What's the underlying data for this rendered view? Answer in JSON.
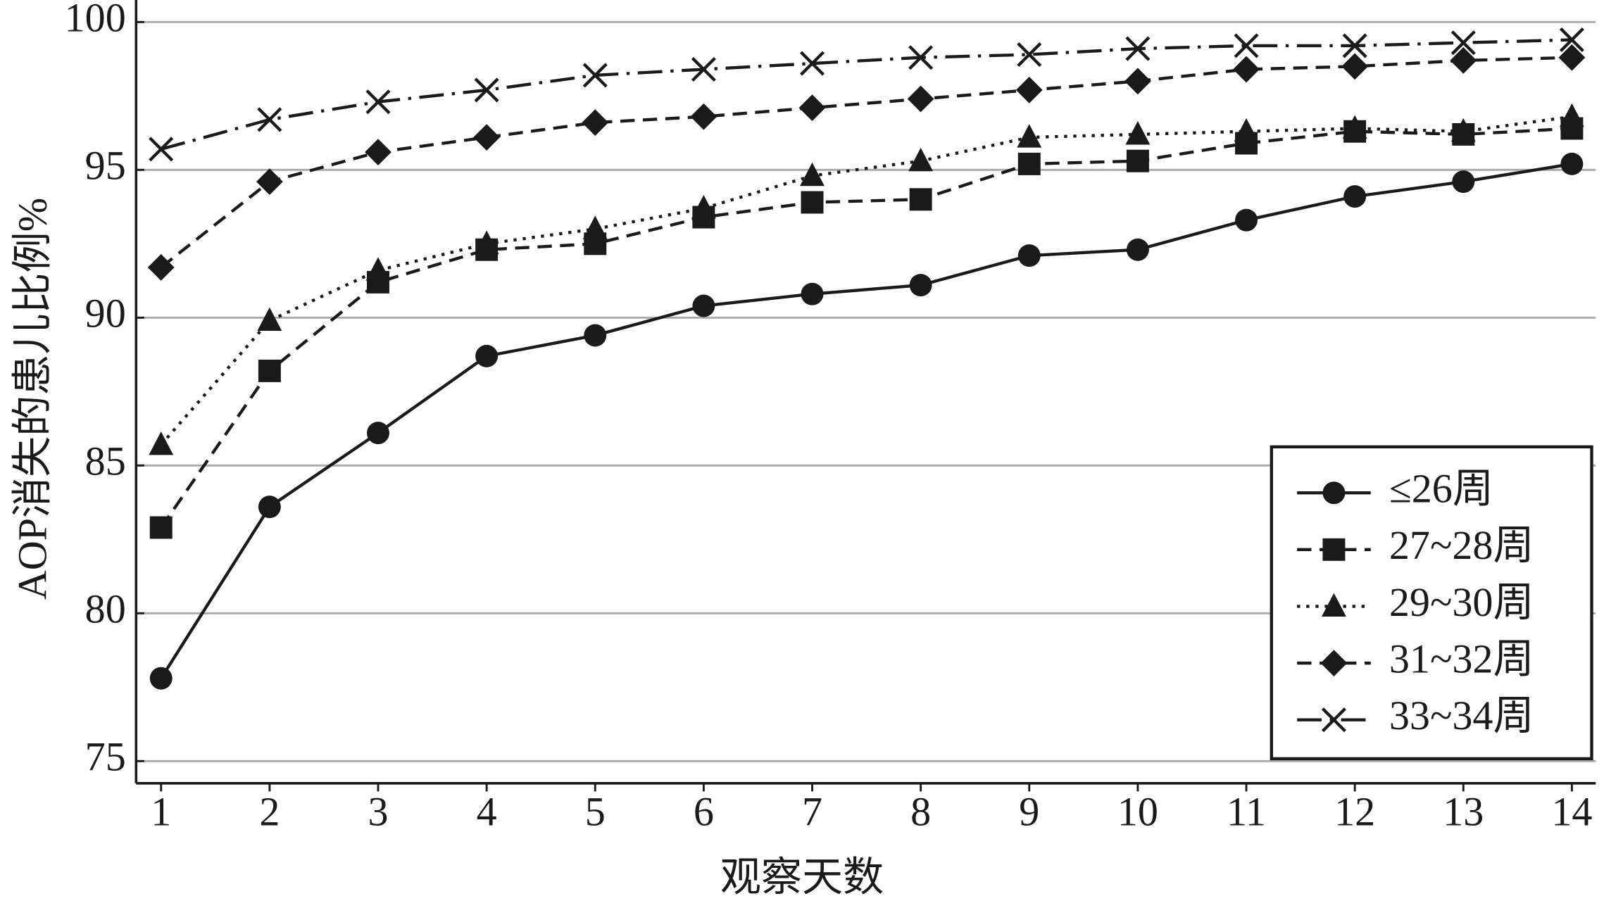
{
  "chart_data": {
    "type": "line",
    "x": [
      1,
      2,
      3,
      4,
      5,
      6,
      7,
      8,
      9,
      10,
      11,
      12,
      13,
      14
    ],
    "xlim": [
      0.77,
      14.22
    ],
    "xticks": [
      1,
      2,
      3,
      4,
      5,
      6,
      7,
      8,
      9,
      10,
      11,
      12,
      13,
      14
    ],
    "ylim": [
      74.25,
      100.4
    ],
    "yticks": [
      75,
      80,
      85,
      90,
      95,
      100
    ],
    "xlabel": "观察天数",
    "ylabel": "AOP消失的患儿比例%",
    "grid": true,
    "legend": "lower right",
    "series": [
      {
        "name": "≤26周",
        "color": "#1a1a1a",
        "marker": "circle",
        "dash": "solid",
        "values": [
          77.8,
          83.6,
          86.1,
          88.7,
          89.4,
          90.4,
          90.8,
          91.1,
          92.1,
          92.3,
          93.3,
          94.1,
          94.6,
          95.2
        ]
      },
      {
        "name": "27~28周",
        "color": "#1a1a1a",
        "marker": "square",
        "dash": "dashed",
        "values": [
          82.9,
          88.2,
          91.2,
          92.3,
          92.5,
          93.4,
          93.9,
          94.0,
          95.2,
          95.3,
          95.9,
          96.3,
          96.2,
          96.4
        ]
      },
      {
        "name": "29~30周",
        "color": "#1a1a1a",
        "marker": "triangle",
        "dash": "dotted",
        "values": [
          85.7,
          89.9,
          91.6,
          92.5,
          93.0,
          93.7,
          94.8,
          95.3,
          96.1,
          96.2,
          96.3,
          96.4,
          96.3,
          96.8
        ]
      },
      {
        "name": "31~32周",
        "color": "#1a1a1a",
        "marker": "diamond",
        "dash": "dashed",
        "values": [
          91.7,
          94.6,
          95.6,
          96.1,
          96.6,
          96.8,
          97.1,
          97.4,
          97.7,
          98.0,
          98.4,
          98.5,
          98.7,
          98.8
        ]
      },
      {
        "name": "33~34周",
        "color": "#1a1a1a",
        "marker": "x",
        "dash": "dashdot",
        "values": [
          95.7,
          96.7,
          97.3,
          97.7,
          98.2,
          98.4,
          98.6,
          98.8,
          98.9,
          99.1,
          99.2,
          99.2,
          99.3,
          99.4
        ]
      }
    ]
  }
}
